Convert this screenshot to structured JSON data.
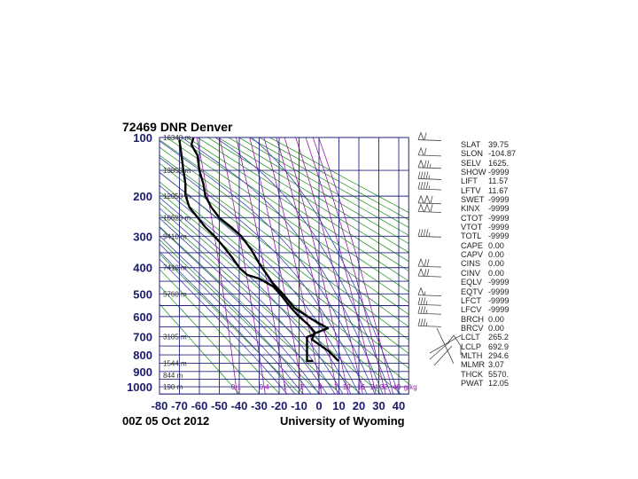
{
  "header": {
    "station_title": "72469 DNR Denver"
  },
  "footer": {
    "time": "00Z 05 Oct 2012",
    "source": "University of Wyoming"
  },
  "colors": {
    "grid": "#23237f",
    "dry_adiabat": "#2e9a2e",
    "moist_adiabat": "#3b4aa8",
    "mixing_ratio": "#9a1aa8",
    "profile": "#000000",
    "axis_label": "#1c1c6e"
  },
  "chart_data": {
    "type": "line",
    "diagram": "Stuve thermodynamic diagram",
    "xlabel": "",
    "ylabel": "",
    "xlim": [
      -80,
      45
    ],
    "ylim": [
      1050,
      100
    ],
    "x_ticks": [
      "-80",
      "-70",
      "-60",
      "-50",
      "-40",
      "-30",
      "-20",
      "-10",
      "0",
      "10",
      "20",
      "30",
      "40"
    ],
    "y_ticks": [
      "100",
      "200",
      "300",
      "400",
      "500",
      "600",
      "700",
      "800",
      "900",
      "1000"
    ],
    "height_labels": [
      {
        "p": 100,
        "text": "16340 m"
      },
      {
        "p": 150,
        "text": "13850 m"
      },
      {
        "p": 200,
        "text": "12050 m"
      },
      {
        "p": 250,
        "text": "10620 m"
      },
      {
        "p": 300,
        "text": "9410 m"
      },
      {
        "p": 400,
        "text": "7410 m"
      },
      {
        "p": 500,
        "text": "5760 m"
      },
      {
        "p": 700,
        "text": "3105 m"
      },
      {
        "p": 850,
        "text": "1544 m"
      },
      {
        "p": 925,
        "text": "844 m"
      },
      {
        "p": 1000,
        "text": "190 m"
      }
    ],
    "mixing_ratio_labels": [
      "0.1",
      "0.4",
      "1",
      "2",
      "4",
      "7",
      "10",
      "16",
      "24",
      "32",
      "40"
    ],
    "mixing_ratio_unit": "g/kg",
    "series": [
      {
        "key": "temperature",
        "points": [
          [
            836,
            9.8
          ],
          [
            780,
            5
          ],
          [
            726,
            -2
          ],
          [
            715,
            -3.5
          ],
          [
            700,
            -3
          ],
          [
            683,
            -2.2
          ],
          [
            657,
            4.4
          ],
          [
            610,
            -4
          ],
          [
            560,
            -12.4
          ],
          [
            506,
            -17.5
          ],
          [
            495,
            -18.7
          ],
          [
            459,
            -23
          ],
          [
            426,
            -26
          ],
          [
            385,
            -30
          ],
          [
            340,
            -34
          ],
          [
            300,
            -39
          ],
          [
            275,
            -44
          ],
          [
            250,
            -50
          ],
          [
            225,
            -54
          ],
          [
            200,
            -57
          ],
          [
            175,
            -58
          ],
          [
            150,
            -60
          ],
          [
            125,
            -61
          ],
          [
            110,
            -64
          ],
          [
            100,
            -63
          ]
        ]
      },
      {
        "key": "dewpoint",
        "points": [
          [
            836,
            -3
          ],
          [
            836,
            -6
          ],
          [
            726,
            -6
          ],
          [
            702,
            -6
          ],
          [
            690,
            -3
          ],
          [
            679,
            -2
          ],
          [
            643,
            -5
          ],
          [
            600,
            -10
          ],
          [
            560,
            -14
          ],
          [
            506,
            -19
          ],
          [
            470,
            -23
          ],
          [
            440,
            -30
          ],
          [
            426,
            -36
          ],
          [
            400,
            -40
          ],
          [
            365,
            -43.6
          ],
          [
            330,
            -48
          ],
          [
            302,
            -52
          ],
          [
            275,
            -57
          ],
          [
            249,
            -61
          ],
          [
            225,
            -65
          ],
          [
            198,
            -67
          ],
          [
            175,
            -67
          ],
          [
            150,
            -68
          ],
          [
            125,
            -69
          ],
          [
            103,
            -70
          ]
        ]
      }
    ],
    "wind_barbs": [
      {
        "p": 103,
        "dir": 280,
        "kt": 60
      },
      {
        "p": 125,
        "dir": 280,
        "kt": 60
      },
      {
        "p": 145,
        "dir": 280,
        "kt": 75
      },
      {
        "p": 165,
        "dir": 280,
        "kt": 45
      },
      {
        "p": 185,
        "dir": 280,
        "kt": 45
      },
      {
        "p": 215,
        "dir": 280,
        "kt": 110
      },
      {
        "p": 235,
        "dir": 280,
        "kt": 110
      },
      {
        "p": 300,
        "dir": 280,
        "kt": 45
      },
      {
        "p": 395,
        "dir": 285,
        "kt": 70
      },
      {
        "p": 430,
        "dir": 280,
        "kt": 70
      },
      {
        "p": 505,
        "dir": 290,
        "kt": 55
      },
      {
        "p": 545,
        "dir": 285,
        "kt": 35
      },
      {
        "p": 585,
        "dir": 280,
        "kt": 35
      },
      {
        "p": 645,
        "dir": 270,
        "kt": 35
      }
    ]
  },
  "stats": [
    {
      "k": "SLAT",
      "v": "39.75"
    },
    {
      "k": "SLON",
      "v": "-104.87"
    },
    {
      "k": "SELV",
      "v": "1625."
    },
    {
      "k": "SHOW",
      "v": "-9999"
    },
    {
      "k": "LIFT",
      "v": "11.57"
    },
    {
      "k": "LFTV",
      "v": "11.67"
    },
    {
      "k": "SWET",
      "v": "-9999"
    },
    {
      "k": "KINX",
      "v": "-9999"
    },
    {
      "k": "CTOT",
      "v": "-9999"
    },
    {
      "k": "VTOT",
      "v": "-9999"
    },
    {
      "k": "TOTL",
      "v": "-9999"
    },
    {
      "k": "CAPE",
      "v": "0.00"
    },
    {
      "k": "CAPV",
      "v": "0.00"
    },
    {
      "k": "CINS",
      "v": "0.00"
    },
    {
      "k": "CINV",
      "v": "0.00"
    },
    {
      "k": "EQLV",
      "v": "-9999"
    },
    {
      "k": "EQTV",
      "v": "-9999"
    },
    {
      "k": "LFCT",
      "v": "-9999"
    },
    {
      "k": "LFCV",
      "v": "-9999"
    },
    {
      "k": "BRCH",
      "v": "0.00"
    },
    {
      "k": "BRCV",
      "v": "0.00"
    },
    {
      "k": "LCLT",
      "v": "265.2"
    },
    {
      "k": "LCLP",
      "v": "692.9"
    },
    {
      "k": "MLTH",
      "v": "294.6"
    },
    {
      "k": "MLMR",
      "v": "3.07"
    },
    {
      "k": "THCK",
      "v": "5570."
    },
    {
      "k": "PWAT",
      "v": "12.05"
    }
  ]
}
